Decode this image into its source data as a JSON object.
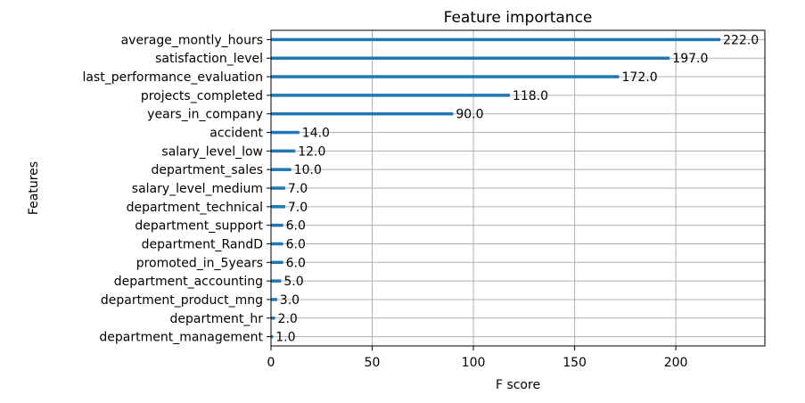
{
  "chart_data": {
    "type": "bar",
    "orientation": "horizontal",
    "title": "Feature importance",
    "xlabel": "F score",
    "ylabel": "Features",
    "xlim": [
      0,
      244
    ],
    "xticks": [
      0,
      50,
      100,
      150,
      200
    ],
    "grid": true,
    "bar_color": "#1f77b4",
    "categories": [
      "average_montly_hours",
      "satisfaction_level",
      "last_performance_evaluation",
      "projects_completed",
      "years_in_company",
      "accident",
      "salary_level_low",
      "department_sales",
      "salary_level_medium",
      "department_technical",
      "department_support",
      "department_RandD",
      "promoted_in_5years",
      "department_accounting",
      "department_product_mng",
      "department_hr",
      "department_management"
    ],
    "values": [
      222,
      197,
      172,
      118,
      90,
      14,
      12,
      10,
      7,
      7,
      6,
      6,
      6,
      5,
      3,
      2,
      1
    ],
    "value_labels": [
      "222.0",
      "197.0",
      "172.0",
      "118.0",
      "90.0",
      "14.0",
      "12.0",
      "10.0",
      "7.0",
      "7.0",
      "6.0",
      "6.0",
      "6.0",
      "5.0",
      "3.0",
      "2.0",
      "1.0"
    ]
  }
}
